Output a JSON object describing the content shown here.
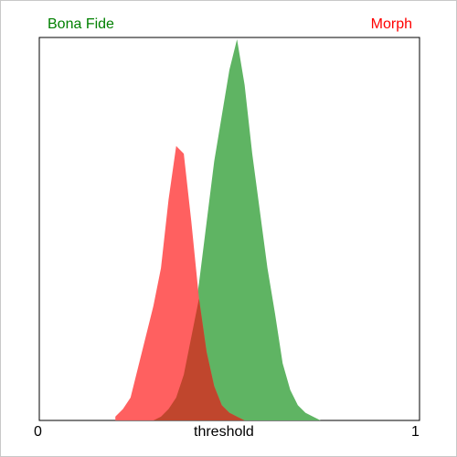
{
  "chart_data": {
    "type": "area",
    "title": "",
    "xlabel": "threshold",
    "ylabel": "",
    "xlim": [
      0,
      1
    ],
    "x_tick_labels": [
      "0",
      "1"
    ],
    "grid": false,
    "legend_placement": "top",
    "colors": {
      "bona_fide": "#5fb463",
      "morph": "#ff6060",
      "overlap": "#c0462d",
      "label_bona_fide": "#008000",
      "label_morph": "#ff0000"
    },
    "x": [
      0.2,
      0.22,
      0.24,
      0.26,
      0.28,
      0.3,
      0.32,
      0.34,
      0.36,
      0.38,
      0.4,
      0.42,
      0.44,
      0.46,
      0.48,
      0.5,
      0.52,
      0.54,
      0.56,
      0.58,
      0.6,
      0.62,
      0.64,
      0.66,
      0.68,
      0.7,
      0.72,
      0.74
    ],
    "series": [
      {
        "name": "Bona Fide",
        "values": [
          0,
          0,
          0,
          0,
          0,
          0,
          0.01,
          0.03,
          0.06,
          0.12,
          0.22,
          0.36,
          0.52,
          0.68,
          0.8,
          0.92,
          1.0,
          0.88,
          0.7,
          0.55,
          0.4,
          0.28,
          0.15,
          0.08,
          0.04,
          0.02,
          0.01,
          0
        ]
      },
      {
        "name": "Morph",
        "values": [
          0.01,
          0.03,
          0.06,
          0.14,
          0.22,
          0.3,
          0.4,
          0.58,
          0.72,
          0.7,
          0.52,
          0.32,
          0.18,
          0.09,
          0.04,
          0.02,
          0.01,
          0,
          0,
          0,
          0,
          0,
          0,
          0,
          0,
          0,
          0,
          0
        ]
      }
    ]
  }
}
